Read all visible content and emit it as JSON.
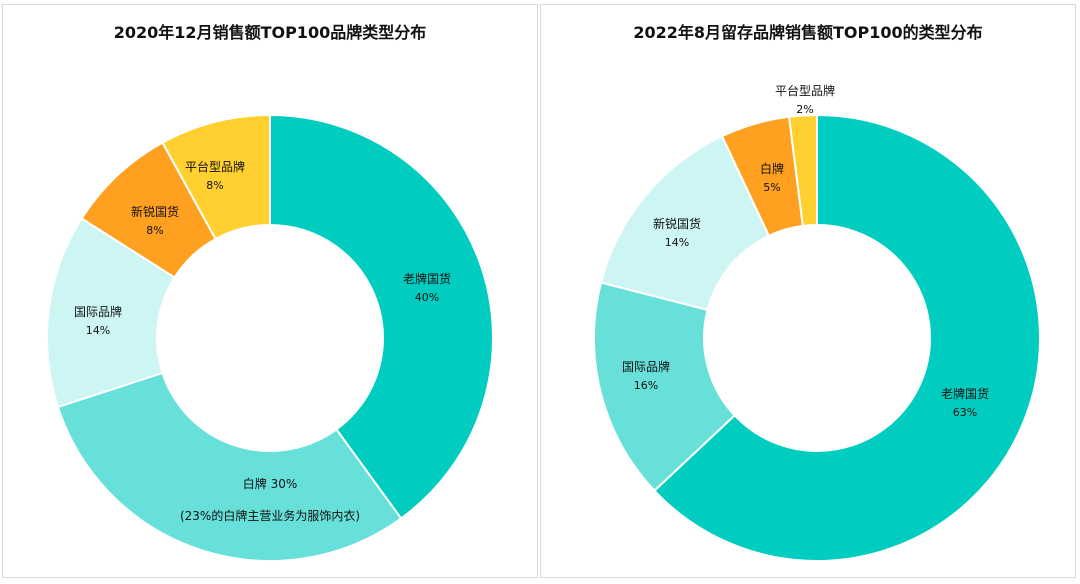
{
  "chart_data": [
    {
      "type": "pie",
      "title": "2020年12月销售额TOP100品牌类型分布",
      "slices": [
        {
          "name": "老牌国货",
          "value": 40,
          "label": "40%",
          "color": "#00CCBF"
        },
        {
          "name": "白牌",
          "value": 30,
          "label": "30%",
          "color": "#66E0D8",
          "note": "(23%的白牌主营业务为服饰内衣)"
        },
        {
          "name": "国际品牌",
          "value": 14,
          "label": "14%",
          "color": "#CCF5F3"
        },
        {
          "name": "新锐国货",
          "value": 8,
          "label": "8%",
          "color": "#FFA020"
        },
        {
          "name": "平台型品牌",
          "value": 8,
          "label": "8%",
          "color": "#FFD030"
        }
      ]
    },
    {
      "type": "pie",
      "title": "2022年8月留存品牌销售额TOP100的类型分布",
      "slices": [
        {
          "name": "老牌国货",
          "value": 63,
          "label": "63%",
          "color": "#00CCBF"
        },
        {
          "name": "国际品牌",
          "value": 16,
          "label": "16%",
          "color": "#66E0D8"
        },
        {
          "name": "新锐国货",
          "value": 14,
          "label": "14%",
          "color": "#CCF5F3"
        },
        {
          "name": "白牌",
          "value": 5,
          "label": "5%",
          "color": "#FFA020"
        },
        {
          "name": "平台型品牌",
          "value": 2,
          "label": "2%",
          "color": "#FFD030"
        }
      ]
    }
  ]
}
